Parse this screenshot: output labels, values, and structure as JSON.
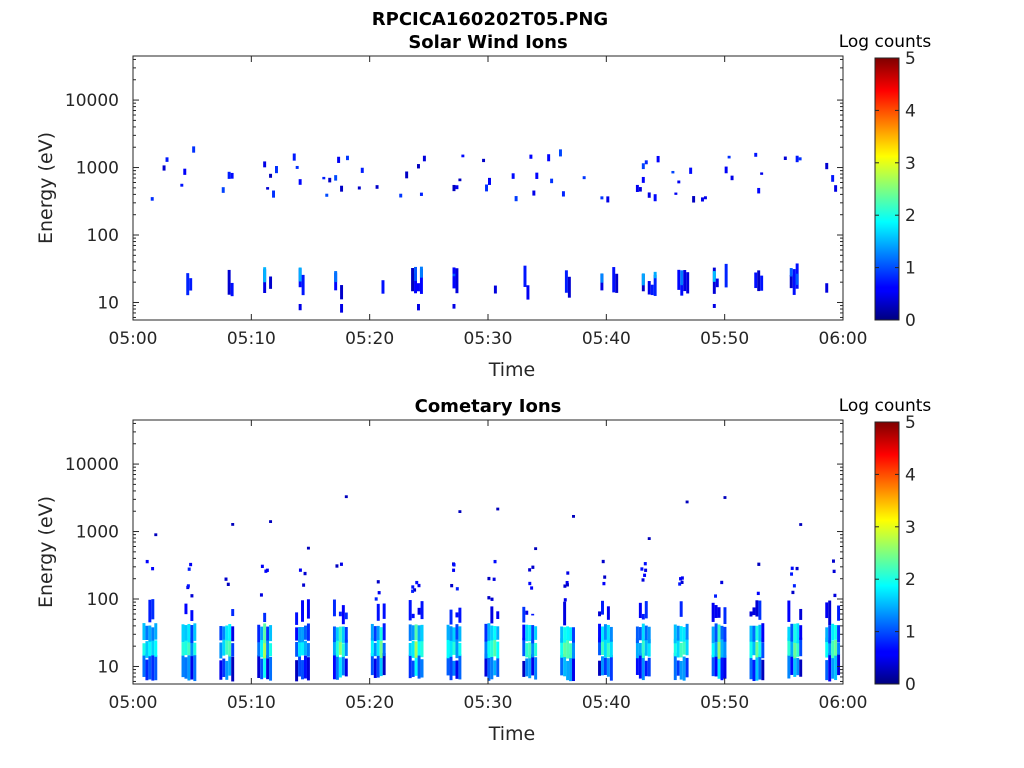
{
  "figure_title": "RPCICA160202T05.PNG",
  "chart_data": [
    {
      "type": "heatmap",
      "title": "Solar Wind Ions",
      "xlabel": "Time",
      "ylabel": "Energy (eV)",
      "x_range_minutes": [
        0,
        60
      ],
      "x_ticks": [
        "05:00",
        "05:10",
        "05:20",
        "05:30",
        "05:40",
        "05:50",
        "06:00"
      ],
      "y_scale": "log",
      "y_range": [
        5.5,
        45000
      ],
      "y_ticks": [
        "10",
        "100",
        "1000",
        "10000"
      ],
      "y_tick_values": [
        10,
        100,
        1000,
        10000
      ],
      "colorbar": {
        "label": "Log counts",
        "range": [
          0,
          5
        ],
        "ticks": [
          "0",
          "1",
          "2",
          "3",
          "4",
          "5"
        ]
      },
      "colormap": "jet",
      "grid": false,
      "low_band_events_minutes": [
        4.5,
        8,
        11,
        11.5,
        14,
        17,
        17.5,
        21,
        23.5,
        24,
        27,
        30.5,
        33,
        36.5,
        39.5,
        40.5,
        43,
        43.5,
        44,
        46,
        46.5,
        49,
        50,
        52.5,
        53,
        55.5,
        56,
        58.5
      ],
      "high_band_events_minutes": [
        1.5,
        2.5,
        4,
        5,
        7.5,
        8,
        11,
        11.5,
        13.5,
        16,
        17,
        18,
        19,
        20.5,
        22.5,
        23,
        24,
        27,
        27.5,
        29.5,
        30,
        32,
        33.5,
        35,
        36,
        38,
        39.5,
        40,
        42.5,
        43,
        44,
        45.5,
        47,
        48,
        50,
        52.5,
        55,
        56,
        58.5,
        59
      ]
    },
    {
      "type": "heatmap",
      "title": "Cometary Ions",
      "xlabel": "Time",
      "ylabel": "Energy (eV)",
      "x_range_minutes": [
        0,
        60
      ],
      "x_ticks": [
        "05:00",
        "05:10",
        "05:20",
        "05:30",
        "05:40",
        "05:50",
        "06:00"
      ],
      "y_scale": "log",
      "y_range": [
        5.5,
        45000
      ],
      "y_ticks": [
        "10",
        "100",
        "1000",
        "10000"
      ],
      "y_tick_values": [
        10,
        100,
        1000,
        10000
      ],
      "colorbar": {
        "label": "Log counts",
        "range": [
          0,
          5
        ],
        "ticks": [
          "0",
          "1",
          "2",
          "3",
          "4",
          "5"
        ]
      },
      "colormap": "jet",
      "grid": false,
      "burst_centers_minutes": [
        1.3,
        4.6,
        7.8,
        11,
        14.2,
        17.4,
        20.6,
        23.8,
        27,
        30.2,
        33.4,
        36.6,
        39.8,
        43,
        46.2,
        49.4,
        52.6,
        55.8,
        59
      ]
    }
  ]
}
